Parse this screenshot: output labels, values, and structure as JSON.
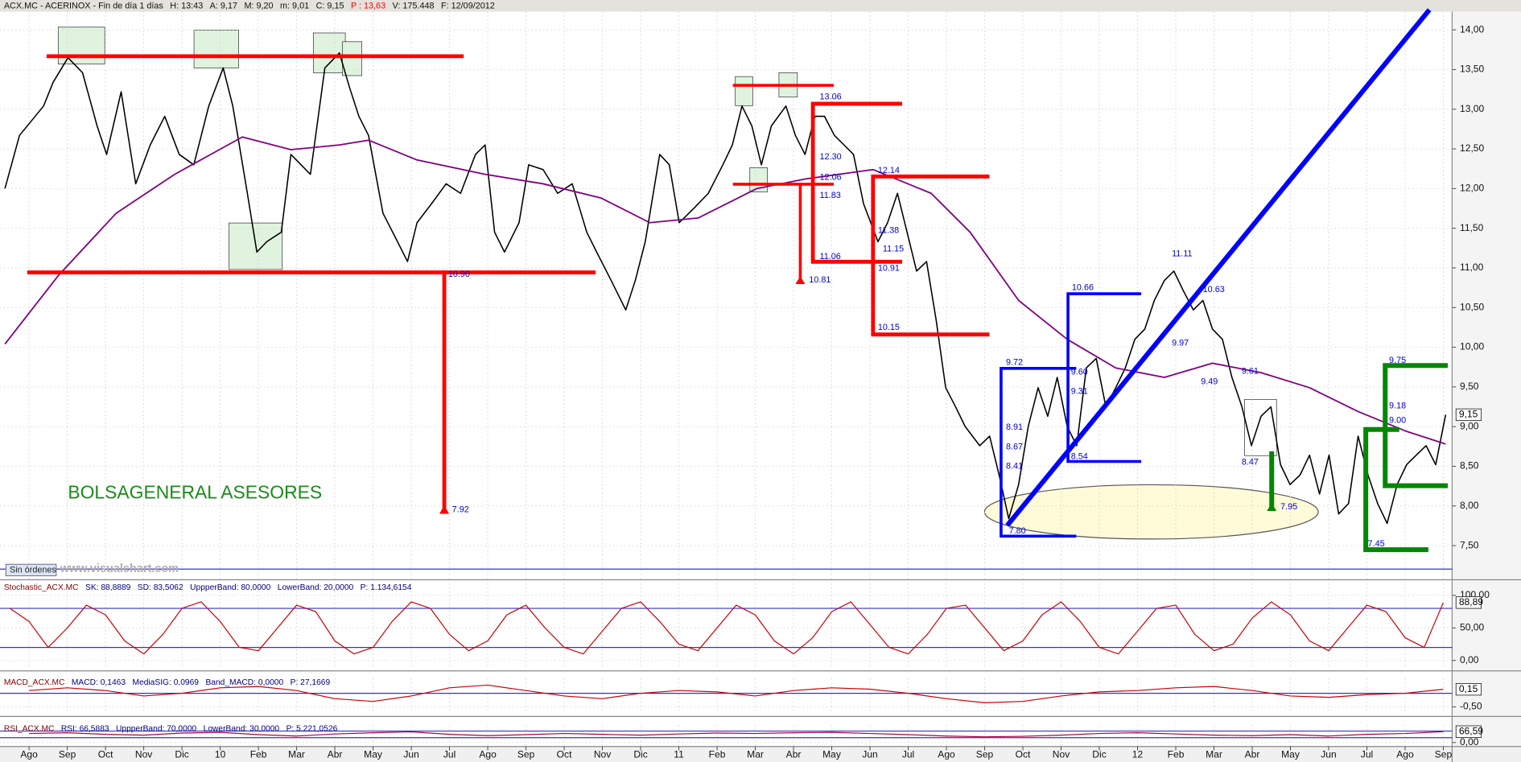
{
  "texts": {
    "watermark": "BOLSAGENERAL ASESORES",
    "orders": "Sin órdenes",
    "site": "www.visualchart.com"
  },
  "annotations": [
    "13.06",
    "12.30",
    "12.06",
    "11.83",
    "11.06",
    "10.81",
    "12.14",
    "11.38",
    "11.15",
    "10.91",
    "10.15",
    "10.90",
    "7.92",
    "10.66",
    "9.72",
    "9.60",
    "9.31",
    "8.91",
    "8.67",
    "8.41",
    "8.54",
    "7.80",
    "11.11",
    "10.63",
    "9.97",
    "9.49",
    "9.61",
    "8.47",
    "7.95",
    "9.75",
    "9.18",
    "9.00",
    "7.45"
  ],
  "chart_data": [
    {
      "type": "line",
      "header": [
        "ACX.MC - ACERINOX - Fin de día 1 días",
        "H: 13:43",
        "A: 9,17",
        "M: 9,20",
        "m: 9,01",
        "C: 9,15",
        "P : 13,63",
        "V: 175.448",
        "F: 12/09/2012"
      ],
      "xlim": [
        -0.76,
        37.23
      ],
      "ylim": [
        7.07,
        14.23
      ],
      "grid": true,
      "xticks": [
        {
          "value": 0,
          "label": "Ago"
        },
        {
          "value": 1,
          "label": "Sep"
        },
        {
          "value": 2,
          "label": "Oct"
        },
        {
          "value": 3,
          "label": "Nov"
        },
        {
          "value": 4,
          "label": "Dic"
        },
        {
          "value": 5,
          "label": "10"
        },
        {
          "value": 6,
          "label": "Feb"
        },
        {
          "value": 7,
          "label": "Mar"
        },
        {
          "value": 8,
          "label": "Abr"
        },
        {
          "value": 9,
          "label": "May"
        },
        {
          "value": 10,
          "label": "Jun"
        },
        {
          "value": 11,
          "label": "Jul"
        },
        {
          "value": 12,
          "label": "Ago"
        },
        {
          "value": 13,
          "label": "Sep"
        },
        {
          "value": 14,
          "label": "Oct"
        },
        {
          "value": 15,
          "label": "Nov"
        },
        {
          "value": 16,
          "label": "Dic"
        },
        {
          "value": 17,
          "label": "11"
        },
        {
          "value": 18,
          "label": "Feb"
        },
        {
          "value": 19,
          "label": "Mar"
        },
        {
          "value": 20,
          "label": "Abr"
        },
        {
          "value": 21,
          "label": "May"
        },
        {
          "value": 22,
          "label": "Jun"
        },
        {
          "value": 23,
          "label": "Jul"
        },
        {
          "value": 24,
          "label": "Ago"
        },
        {
          "value": 25,
          "label": "Sep"
        },
        {
          "value": 26,
          "label": "Oct"
        },
        {
          "value": 27,
          "label": "Nov"
        },
        {
          "value": 28,
          "label": "Dic"
        },
        {
          "value": 29,
          "label": "12"
        },
        {
          "value": 30,
          "label": "Feb"
        },
        {
          "value": 31,
          "label": "Mar"
        },
        {
          "value": 32,
          "label": "Abr"
        },
        {
          "value": 33,
          "label": "May"
        },
        {
          "value": 34,
          "label": "Jun"
        },
        {
          "value": 35,
          "label": "Jul"
        },
        {
          "value": 36,
          "label": "Ago"
        },
        {
          "value": 37,
          "label": "Sep"
        }
      ],
      "yticks": [
        {
          "value": 7.5,
          "label": "7,50"
        },
        {
          "value": 8,
          "label": "8,00"
        },
        {
          "value": 8.5,
          "label": "8,50"
        },
        {
          "value": 9,
          "label": "9,00"
        },
        {
          "value": 9.5,
          "label": "9,50"
        },
        {
          "value": 10,
          "label": "10,00"
        },
        {
          "value": 10.5,
          "label": "10,50"
        },
        {
          "value": 11,
          "label": "11,00"
        },
        {
          "value": 11.5,
          "label": "11,50"
        },
        {
          "value": 12,
          "label": "12,00"
        },
        {
          "value": 12.5,
          "label": "12,50"
        },
        {
          "value": 13,
          "label": "13,00"
        },
        {
          "value": 13.5,
          "label": "13,50"
        },
        {
          "value": 14,
          "label": "14,00"
        }
      ],
      "last_label": {
        "value": 9.15,
        "label": "9,15"
      },
      "series": [
        {
          "color": "#000000",
          "width": 1.3,
          "x": [
            -0.63,
            -0.25,
            0.38,
            0.63,
            1.02,
            1.4,
            1.78,
            2.03,
            2.41,
            2.79,
            3.17,
            3.55,
            3.93,
            4.31,
            4.7,
            5.08,
            5.33,
            5.71,
            5.96,
            6.22,
            6.6,
            6.85,
            7.36,
            7.74,
            8.12,
            8.38,
            8.63,
            8.88,
            9.26,
            9.64,
            9.9,
            10.15,
            10.53,
            10.91,
            11.29,
            11.68,
            11.93,
            12.18,
            12.44,
            12.82,
            13.07,
            13.45,
            13.83,
            14.21,
            14.59,
            14.85,
            15.23,
            15.61,
            15.86,
            16.12,
            16.5,
            16.75,
            17.01,
            17.39,
            17.77,
            18.15,
            18.4,
            18.65,
            18.91,
            19.16,
            19.42,
            19.8,
            20.05,
            20.3,
            20.56,
            20.81,
            21.07,
            21.32,
            21.57,
            21.83,
            22.21,
            22.46,
            22.72,
            22.97,
            23.22,
            23.48,
            23.73,
            23.98,
            24.24,
            24.49,
            24.87,
            25.13,
            25.38,
            25.63,
            25.89,
            26.14,
            26.4,
            26.65,
            26.9,
            27.16,
            27.41,
            27.66,
            27.92,
            28.17,
            28.43,
            28.68,
            28.93,
            29.19,
            29.44,
            29.7,
            29.95,
            30.2,
            30.46,
            30.71,
            30.96,
            31.22,
            31.47,
            31.73,
            31.98,
            32.23,
            32.49,
            32.74,
            32.99,
            33.25,
            33.5,
            33.76,
            34.01,
            34.26,
            34.52,
            34.77,
            35.03,
            35.28,
            35.53,
            35.79,
            36.04,
            36.29,
            36.55,
            36.8,
            37.06
          ],
          "values": [
            12.0,
            12.67,
            13.04,
            13.34,
            13.65,
            13.46,
            12.79,
            12.43,
            13.22,
            12.06,
            12.55,
            12.91,
            12.43,
            12.3,
            13.04,
            13.52,
            13.04,
            11.94,
            11.2,
            11.33,
            11.45,
            12.43,
            12.18,
            13.52,
            13.71,
            13.28,
            12.91,
            12.67,
            11.69,
            11.33,
            11.08,
            11.57,
            11.81,
            12.06,
            11.94,
            12.43,
            12.55,
            11.45,
            11.2,
            11.57,
            12.3,
            12.24,
            11.94,
            12.06,
            11.45,
            11.2,
            10.84,
            10.47,
            10.84,
            11.33,
            12.43,
            12.3,
            11.57,
            11.75,
            11.94,
            12.3,
            12.55,
            13.04,
            12.79,
            12.3,
            12.79,
            13.04,
            12.67,
            12.43,
            12.91,
            12.91,
            12.67,
            12.55,
            12.43,
            11.81,
            11.33,
            11.57,
            11.94,
            11.45,
            10.96,
            11.08,
            10.35,
            9.49,
            9.25,
            9.0,
            8.76,
            8.88,
            8.39,
            7.84,
            8.27,
            9.0,
            9.49,
            9.13,
            9.62,
            9.0,
            8.76,
            9.74,
            9.86,
            9.25,
            9.49,
            9.74,
            10.1,
            10.23,
            10.59,
            10.84,
            10.96,
            10.71,
            10.47,
            10.59,
            10.23,
            10.1,
            9.62,
            9.25,
            8.76,
            9.13,
            9.25,
            8.52,
            8.27,
            8.39,
            8.64,
            8.15,
            8.64,
            7.9,
            8.03,
            8.88,
            8.39,
            8.03,
            7.78,
            8.27,
            8.52,
            8.64,
            8.76,
            8.52,
            9.15
          ]
        },
        {
          "color": "#800080",
          "width": 1.5,
          "x": [
            -0.63,
            0.76,
            2.28,
            3.81,
            5.58,
            6.85,
            8.12,
            8.88,
            10.15,
            11.93,
            13.45,
            14.97,
            16.24,
            17.51,
            19.04,
            20.3,
            22.08,
            23.6,
            24.62,
            25.89,
            27.16,
            28.43,
            29.7,
            30.96,
            32.23,
            33.5,
            34.77,
            36.04,
            37.06
          ],
          "values": [
            10.04,
            10.9,
            11.69,
            12.18,
            12.65,
            12.49,
            12.55,
            12.61,
            12.36,
            12.18,
            12.06,
            11.88,
            11.57,
            11.63,
            12.0,
            12.12,
            12.24,
            11.94,
            11.45,
            10.59,
            10.1,
            9.74,
            9.62,
            9.8,
            9.68,
            9.49,
            9.19,
            8.94,
            8.78
          ]
        }
      ]
    },
    {
      "type": "line",
      "header": [
        "Stochastic_ACX.MC",
        "SK: 88,8889",
        "SD: 83,5062",
        "UppperBand: 80,0000",
        "LowerBand: 20,0000",
        "P: 1.134,6154"
      ],
      "xlim": [
        -0.76,
        37.23
      ],
      "ylim": [
        -13,
        118
      ],
      "grid": true,
      "yticks": [
        {
          "value": 0,
          "label": "0,00"
        },
        {
          "value": 50,
          "label": "50,00"
        },
        {
          "value": 100,
          "label": "100,00"
        }
      ],
      "bands": [
        80,
        20
      ],
      "last_label": {
        "value": 88.89,
        "label": "88,89"
      },
      "series": [
        {
          "color": "#cc0000",
          "width": 1,
          "x": [
            -0.5,
            0,
            0.5,
            1,
            1.5,
            2,
            2.5,
            3,
            3.5,
            4,
            4.5,
            5,
            5.5,
            6,
            6.5,
            7,
            7.5,
            8,
            8.5,
            9,
            9.5,
            10,
            10.5,
            11,
            11.5,
            12,
            12.5,
            13,
            13.5,
            14,
            14.5,
            15,
            15.5,
            16,
            16.5,
            17,
            17.5,
            18,
            18.5,
            19,
            19.5,
            20,
            20.5,
            21,
            21.5,
            22,
            22.5,
            23,
            23.5,
            24,
            24.5,
            25,
            25.5,
            26,
            26.5,
            27,
            27.5,
            28,
            28.5,
            29,
            29.5,
            30,
            30.5,
            31,
            31.5,
            32,
            32.5,
            33,
            33.5,
            34,
            34.5,
            35,
            35.5,
            36,
            36.5,
            37
          ],
          "values": [
            80,
            60,
            20,
            50,
            85,
            70,
            30,
            10,
            40,
            80,
            90,
            60,
            20,
            15,
            50,
            85,
            75,
            30,
            10,
            20,
            60,
            90,
            80,
            40,
            15,
            30,
            70,
            85,
            50,
            20,
            10,
            45,
            80,
            90,
            60,
            25,
            15,
            50,
            85,
            70,
            30,
            10,
            35,
            75,
            90,
            55,
            20,
            10,
            40,
            80,
            85,
            50,
            15,
            30,
            70,
            90,
            60,
            20,
            10,
            45,
            80,
            85,
            40,
            15,
            25,
            65,
            90,
            70,
            30,
            15,
            50,
            85,
            75,
            35,
            20,
            88.89
          ]
        }
      ]
    },
    {
      "type": "line",
      "header": [
        "MACD_ACX.MC",
        "MACD: 0,1463",
        "MediaSIG: 0,0969",
        "Band_MACD: 0,0000",
        "P: 27,1669"
      ],
      "xlim": [
        -0.76,
        37.23
      ],
      "ylim": [
        -0.71,
        0.54
      ],
      "grid": true,
      "yticks": [
        {
          "value": -0.5,
          "label": "-0,50"
        }
      ],
      "bands": [
        0
      ],
      "last_label": {
        "value": 0.1463,
        "label": "0,15"
      },
      "series": [
        {
          "color": "#cc0000",
          "width": 1,
          "x": [
            0,
            1,
            2,
            3,
            4,
            5,
            6,
            7,
            8,
            9,
            10,
            11,
            12,
            13,
            14,
            15,
            16,
            17,
            18,
            19,
            20,
            21,
            22,
            23,
            24,
            25,
            26,
            27,
            28,
            29,
            30,
            31,
            32,
            33,
            34,
            35,
            36,
            37
          ],
          "values": [
            0.1,
            0.2,
            0.1,
            -0.1,
            0.0,
            0.2,
            0.25,
            0.1,
            -0.2,
            -0.3,
            -0.1,
            0.2,
            0.3,
            0.1,
            -0.1,
            -0.2,
            0.0,
            0.1,
            0.05,
            -0.1,
            0.1,
            0.2,
            0.15,
            0.0,
            -0.2,
            -0.35,
            -0.3,
            -0.1,
            0.05,
            0.1,
            0.2,
            0.25,
            0.1,
            -0.1,
            -0.15,
            -0.05,
            0.0,
            0.1463
          ]
        }
      ]
    },
    {
      "type": "line",
      "header": [
        "RSI_ACX.MC",
        "RSI: 66,5883",
        "UppperBand: 70,0000",
        "LowerBand: 30,0000",
        "P: 5.221,0526"
      ],
      "xlim": [
        -0.76,
        37.23
      ],
      "ylim": [
        -24,
        106
      ],
      "grid": true,
      "yticks": [
        {
          "value": 0,
          "label": "0,00"
        }
      ],
      "bands": [
        70,
        30
      ],
      "last_label": {
        "value": 66.5883,
        "label": "66,59"
      },
      "series": [
        {
          "color": "#aa0044",
          "width": 1,
          "x": [
            0,
            1,
            2,
            3,
            4,
            5,
            6,
            7,
            8,
            9,
            10,
            11,
            12,
            13,
            14,
            15,
            16,
            17,
            18,
            19,
            20,
            21,
            22,
            23,
            24,
            25,
            26,
            27,
            28,
            29,
            30,
            31,
            32,
            33,
            34,
            35,
            36,
            37
          ],
          "values": [
            55,
            60,
            50,
            45,
            58,
            62,
            48,
            40,
            52,
            60,
            65,
            50,
            42,
            48,
            55,
            50,
            45,
            52,
            58,
            55,
            60,
            62,
            55,
            48,
            40,
            35,
            38,
            45,
            55,
            60,
            52,
            45,
            42,
            48,
            40,
            50,
            55,
            66.5883
          ]
        }
      ]
    }
  ]
}
